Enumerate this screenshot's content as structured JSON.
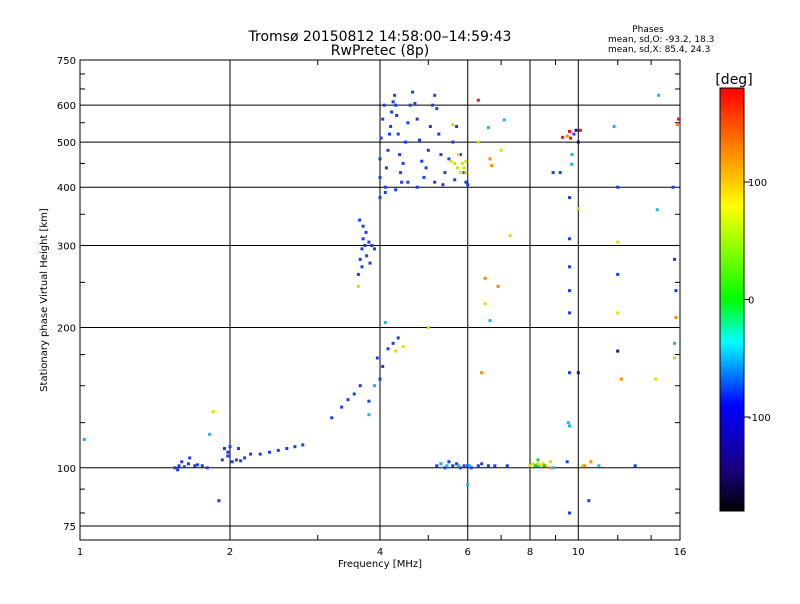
{
  "chart_data": {
    "type": "scatter",
    "title": "Tromsø 20150812 14:58:00–14:59:43",
    "subtitle": "RwPretec (8p)",
    "xlabel": "Frequency [MHz]",
    "ylabel": "Stationary phase Virtual Height [km]",
    "x_scale": "log",
    "y_scale": "log",
    "xlim": [
      1,
      16
    ],
    "ylim": [
      70,
      750
    ],
    "x_ticks": [
      1,
      2,
      4,
      6,
      8,
      10,
      16
    ],
    "y_ticks": [
      75,
      100,
      200,
      300,
      400,
      500,
      600,
      750
    ],
    "grid": true,
    "stats": {
      "heading": "Phases",
      "line1": "mean, sd,O:  -93.2, 18.3",
      "line2": "mean, sd,X:  85.4, 24.3"
    },
    "colorbar": {
      "label": "[deg]",
      "range": [
        -180,
        180
      ],
      "ticks": [
        100,
        0,
        -100
      ],
      "tick_labels": [
        "100",
        "0",
        "-100"
      ]
    },
    "palette": {
      "red": "#ff0000",
      "yellow": "#ffff00",
      "green": "#00ff00",
      "cyan": "#00ffff",
      "blue": "#0000ff",
      "black": "#000000"
    },
    "point_colors": {
      "blue": "#1c3cf0",
      "cyan": "#1fb4e8",
      "yellow": "#d8e000",
      "orange": "#ff8a00",
      "red": "#ee1010",
      "navy": "#0d1a80",
      "green": "#22cc22"
    },
    "series": [
      {
        "color_key": "blue",
        "points": [
          [
            1.55,
            100
          ],
          [
            1.58,
            101
          ],
          [
            1.6,
            103
          ],
          [
            1.65,
            102
          ],
          [
            1.7,
            101
          ],
          [
            1.72,
            101.5
          ],
          [
            1.76,
            101
          ],
          [
            1.8,
            100
          ],
          [
            1.66,
            105
          ],
          [
            1.57,
            99
          ],
          [
            1.62,
            100.5
          ],
          [
            1.93,
            104
          ],
          [
            1.98,
            106
          ],
          [
            2.02,
            103
          ],
          [
            2.06,
            104
          ],
          [
            2.1,
            103.5
          ],
          [
            2.14,
            105
          ],
          [
            2.2,
            107
          ],
          [
            2.3,
            107
          ],
          [
            2.4,
            108
          ],
          [
            2.5,
            109
          ],
          [
            2.6,
            110
          ],
          [
            2.7,
            111
          ],
          [
            2.8,
            112
          ],
          [
            1.95,
            110
          ],
          [
            2.0,
            111
          ],
          [
            2.08,
            110
          ],
          [
            1.98,
            108
          ],
          [
            3.2,
            128
          ],
          [
            3.35,
            135
          ],
          [
            3.45,
            140
          ],
          [
            3.55,
            144
          ],
          [
            3.65,
            150
          ],
          [
            3.8,
            139
          ],
          [
            4.0,
            155
          ],
          [
            4.05,
            165
          ],
          [
            4.15,
            180
          ],
          [
            4.25,
            185
          ],
          [
            4.35,
            190
          ],
          [
            3.95,
            172
          ],
          [
            3.62,
            260
          ],
          [
            3.65,
            280
          ],
          [
            3.68,
            295
          ],
          [
            3.7,
            310
          ],
          [
            3.73,
            300
          ],
          [
            3.76,
            285
          ],
          [
            3.8,
            305
          ],
          [
            3.85,
            300
          ],
          [
            3.9,
            295
          ],
          [
            3.64,
            340
          ],
          [
            3.7,
            330
          ],
          [
            3.75,
            320
          ],
          [
            3.68,
            270
          ],
          [
            3.82,
            275
          ],
          [
            4.0,
            380
          ],
          [
            4.0,
            420
          ],
          [
            4.0,
            460
          ],
          [
            4.02,
            510
          ],
          [
            4.05,
            560
          ],
          [
            4.08,
            600
          ],
          [
            4.1,
            400
          ],
          [
            4.12,
            440
          ],
          [
            4.15,
            480
          ],
          [
            4.18,
            520
          ],
          [
            4.2,
            540
          ],
          [
            4.22,
            580
          ],
          [
            4.25,
            610
          ],
          [
            4.28,
            630
          ],
          [
            4.3,
            600
          ],
          [
            4.32,
            570
          ],
          [
            4.35,
            520
          ],
          [
            4.38,
            470
          ],
          [
            4.4,
            430
          ],
          [
            4.42,
            410
          ],
          [
            4.45,
            450
          ],
          [
            4.5,
            500
          ],
          [
            4.55,
            550
          ],
          [
            4.6,
            600
          ],
          [
            4.65,
            640
          ],
          [
            4.7,
            605
          ],
          [
            4.75,
            560
          ],
          [
            4.8,
            505
          ],
          [
            4.85,
            455
          ],
          [
            4.9,
            420
          ],
          [
            4.95,
            440
          ],
          [
            5.0,
            480
          ],
          [
            5.05,
            540
          ],
          [
            5.1,
            600
          ],
          [
            5.15,
            630
          ],
          [
            5.2,
            590
          ],
          [
            5.25,
            520
          ],
          [
            5.3,
            470
          ],
          [
            5.4,
            430
          ],
          [
            5.5,
            460
          ],
          [
            5.6,
            500
          ],
          [
            5.7,
            540
          ],
          [
            5.8,
            470
          ],
          [
            5.9,
            430
          ],
          [
            5.95,
            410
          ],
          [
            6.0,
            405
          ],
          [
            4.1,
            390
          ],
          [
            4.3,
            395
          ],
          [
            4.55,
            410
          ],
          [
            4.75,
            400
          ],
          [
            5.15,
            410
          ],
          [
            5.35,
            405
          ],
          [
            5.65,
            415
          ],
          [
            5.2,
            101
          ],
          [
            5.3,
            102
          ],
          [
            5.4,
            100
          ],
          [
            5.5,
            103
          ],
          [
            5.6,
            101
          ],
          [
            5.7,
            102
          ],
          [
            5.8,
            100
          ],
          [
            5.9,
            101
          ],
          [
            6.0,
            101
          ],
          [
            6.1,
            100
          ],
          [
            6.3,
            101
          ],
          [
            6.4,
            102
          ],
          [
            6.6,
            101
          ],
          [
            6.8,
            101
          ],
          [
            7.2,
            101
          ],
          [
            1.9,
            85
          ],
          [
            9.5,
            103
          ],
          [
            9.8,
            520
          ],
          [
            9.2,
            430
          ],
          [
            8.9,
            430
          ],
          [
            9.6,
            380
          ],
          [
            9.6,
            310
          ],
          [
            9.6,
            270
          ],
          [
            9.6,
            240
          ],
          [
            9.6,
            215
          ],
          [
            9.6,
            160
          ],
          [
            10.5,
            85
          ],
          [
            12,
            400
          ],
          [
            12,
            260
          ],
          [
            15.5,
            400
          ],
          [
            15.6,
            280
          ],
          [
            15.7,
            240
          ],
          [
            13,
            101
          ],
          [
            9.6,
            80
          ]
        ]
      },
      {
        "color_key": "cyan",
        "points": [
          [
            1.02,
            115
          ],
          [
            1.82,
            118
          ],
          [
            3.8,
            130
          ],
          [
            3.9,
            150
          ],
          [
            4.1,
            205
          ],
          [
            5.3,
            102
          ],
          [
            5.45,
            101
          ],
          [
            5.75,
            101
          ],
          [
            6.0,
            92
          ],
          [
            6.05,
            101
          ],
          [
            6.6,
            537
          ],
          [
            6.65,
            207
          ],
          [
            7.1,
            558
          ],
          [
            8.3,
            101
          ],
          [
            8.9,
            100
          ],
          [
            9.55,
            125
          ],
          [
            9.6,
            123
          ],
          [
            9.7,
            448
          ],
          [
            9.72,
            470
          ],
          [
            11.8,
            540
          ],
          [
            14.5,
            630
          ],
          [
            14.4,
            358
          ],
          [
            15.6,
            185
          ],
          [
            11.0,
            101
          ]
        ]
      },
      {
        "color_key": "yellow",
        "points": [
          [
            1.85,
            132
          ],
          [
            3.62,
            245
          ],
          [
            4.3,
            178
          ],
          [
            4.45,
            182
          ],
          [
            5.0,
            200
          ],
          [
            5.6,
            545
          ],
          [
            5.65,
            450
          ],
          [
            5.72,
            440
          ],
          [
            5.8,
            430
          ],
          [
            5.85,
            450
          ],
          [
            5.9,
            440
          ],
          [
            5.95,
            455
          ],
          [
            5.75,
            470
          ],
          [
            5.55,
            455
          ],
          [
            5.95,
            430
          ],
          [
            6.3,
            500
          ],
          [
            6.5,
            225
          ],
          [
            7.0,
            480
          ],
          [
            7.3,
            315
          ],
          [
            8.0,
            101
          ],
          [
            8.1,
            102
          ],
          [
            8.2,
            101.5
          ],
          [
            8.3,
            102
          ],
          [
            8.4,
            101
          ],
          [
            8.5,
            102
          ],
          [
            8.6,
            101
          ],
          [
            8.8,
            103
          ],
          [
            10.0,
            360
          ],
          [
            10.2,
            101
          ],
          [
            12,
            305
          ],
          [
            12,
            215
          ],
          [
            14.3,
            155
          ],
          [
            15.6,
            172
          ]
        ]
      },
      {
        "color_key": "orange",
        "points": [
          [
            6.4,
            160
          ],
          [
            6.5,
            255
          ],
          [
            6.65,
            460
          ],
          [
            6.7,
            445
          ],
          [
            6.9,
            245
          ],
          [
            8.8,
            100
          ],
          [
            9.5,
            515
          ],
          [
            10.3,
            101
          ],
          [
            10.6,
            103
          ],
          [
            12.2,
            155
          ],
          [
            15.7,
            210
          ],
          [
            15.8,
            545
          ]
        ]
      },
      {
        "color_key": "red",
        "points": [
          [
            6.3,
            615
          ],
          [
            9.3,
            512
          ],
          [
            9.6,
            527
          ],
          [
            9.65,
            510
          ],
          [
            10.1,
            530
          ],
          [
            15.9,
            560
          ]
        ]
      },
      {
        "color_key": "navy",
        "points": [
          [
            9.9,
            530
          ],
          [
            10.0,
            500
          ],
          [
            12.0,
            178
          ],
          [
            10.0,
            160
          ]
        ]
      },
      {
        "color_key": "green",
        "points": [
          [
            8.2,
            101
          ],
          [
            8.3,
            104
          ],
          [
            8.55,
            101
          ]
        ]
      }
    ]
  }
}
